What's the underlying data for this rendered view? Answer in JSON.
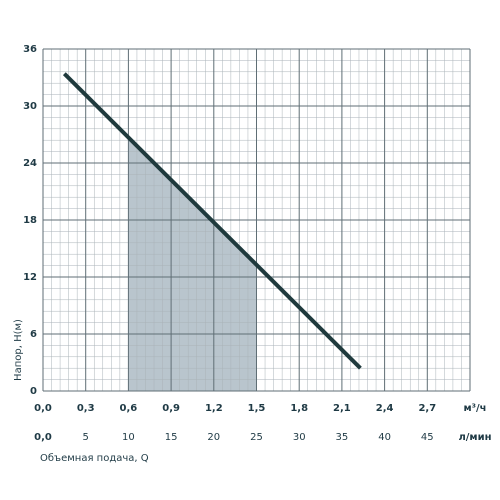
{
  "chart_data": {
    "type": "line",
    "xlabel": "Объемная подача, Q",
    "ylabel": "Напор, H(м)",
    "x_unit": "м³/ч",
    "x2_unit": "л/мин",
    "xlim": [
      0,
      3
    ],
    "ylim": [
      0,
      36
    ],
    "x2lim": [
      0,
      50
    ],
    "xticks": [
      {
        "value": 0,
        "label": "0,0"
      },
      {
        "value": 0.3,
        "label": "0,3"
      },
      {
        "value": 0.6,
        "label": "0,6"
      },
      {
        "value": 0.9,
        "label": "0,9"
      },
      {
        "value": 1.2,
        "label": "1,2"
      },
      {
        "value": 1.5,
        "label": "1,5"
      },
      {
        "value": 1.8,
        "label": "1,8"
      },
      {
        "value": 2.1,
        "label": "2,1"
      },
      {
        "value": 2.4,
        "label": "2,4"
      },
      {
        "value": 2.7,
        "label": "2,7"
      }
    ],
    "yticks": [
      0,
      6,
      12,
      18,
      24,
      30,
      36
    ],
    "x2ticks": [
      {
        "value": 0,
        "label": "0,0"
      },
      5,
      10,
      15,
      20,
      25,
      30,
      35,
      40,
      45
    ],
    "grid": true,
    "minor_divisions": 5,
    "shaded_range": [
      0.6,
      1.5
    ],
    "shade_color": "#b9c5cd",
    "series": [
      {
        "color": "#1f3a3d",
        "x": [
          0.15,
          2.23
        ],
        "values": [
          33.4,
          2.4
        ]
      }
    ]
  }
}
